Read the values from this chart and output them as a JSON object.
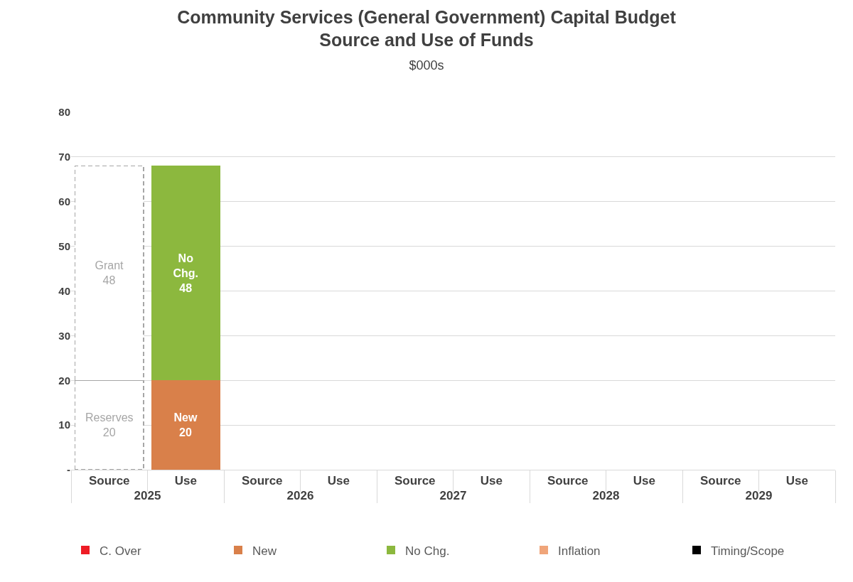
{
  "chart_data": {
    "type": "bar",
    "title": "Community Services (General Government) Capital Budget\nSource and Use of Funds",
    "subtitle": "$000s",
    "categories": [
      "Source",
      "Use",
      "Source",
      "Use",
      "Source",
      "Use",
      "Source",
      "Use",
      "Source",
      "Use"
    ],
    "annotations": [
      "2025",
      "2026",
      "2027",
      "2028",
      "2029"
    ],
    "stacked": true,
    "data_labels": true,
    "grid": "y",
    "legend": "bottom",
    "ylim": [
      0,
      80
    ],
    "yticks": [
      {
        "value": 0,
        "label": "-"
      },
      10,
      20,
      30,
      40,
      50,
      60,
      70,
      80
    ],
    "series": [
      {
        "name": "Reserves",
        "color": "#ffffff",
        "line_style": "dashed",
        "values": [
          20,
          null,
          null,
          null,
          null,
          null,
          null,
          null,
          null,
          null
        ]
      },
      {
        "name": "Grant",
        "color": "#ffffff",
        "line_style": "dashed",
        "values": [
          48,
          null,
          null,
          null,
          null,
          null,
          null,
          null,
          null,
          null
        ]
      },
      {
        "name": "C. Over",
        "color": "#ee1c25",
        "values": [
          null,
          null,
          null,
          null,
          null,
          null,
          null,
          null,
          null,
          null
        ]
      },
      {
        "name": "New",
        "color": "#d9804a",
        "values": [
          null,
          20,
          null,
          null,
          null,
          null,
          null,
          null,
          null,
          null
        ]
      },
      {
        "name": "No Chg.",
        "color": "#8cb83e",
        "values": [
          null,
          48,
          null,
          null,
          null,
          null,
          null,
          null,
          null,
          null
        ]
      },
      {
        "name": "Inflation",
        "color": "#f0a57a",
        "values": [
          null,
          null,
          null,
          null,
          null,
          null,
          null,
          null,
          null,
          null
        ]
      },
      {
        "name": "Timing/Scope",
        "color": "#000000",
        "values": [
          null,
          null,
          null,
          null,
          null,
          null,
          null,
          null,
          null,
          null
        ]
      }
    ]
  }
}
